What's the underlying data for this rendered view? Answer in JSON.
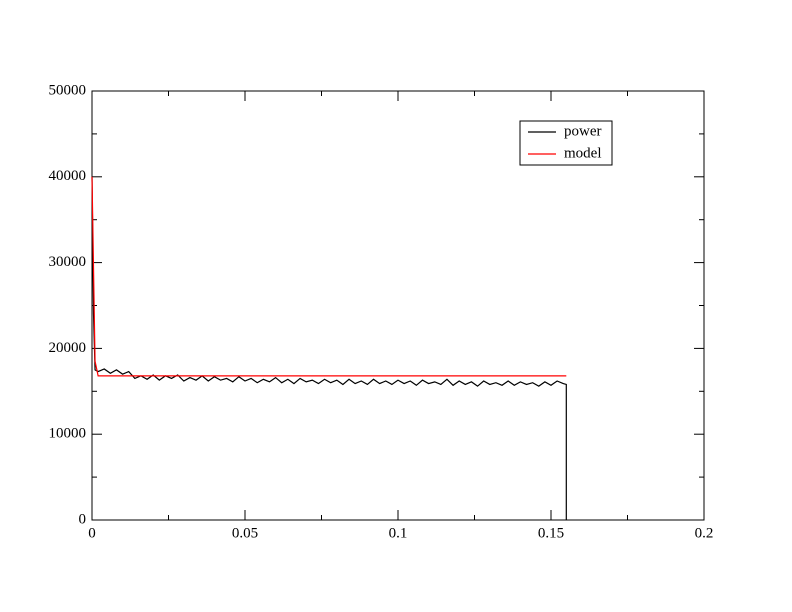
{
  "chart_data": {
    "type": "line",
    "series": [
      {
        "name": "power",
        "color": "#000000",
        "x": [
          0,
          0.0005,
          0.001,
          0.002,
          0.004,
          0.006,
          0.008,
          0.01,
          0.012,
          0.014,
          0.016,
          0.018,
          0.02,
          0.022,
          0.024,
          0.026,
          0.028,
          0.03,
          0.032,
          0.034,
          0.036,
          0.038,
          0.04,
          0.042,
          0.044,
          0.046,
          0.048,
          0.05,
          0.052,
          0.054,
          0.056,
          0.058,
          0.06,
          0.062,
          0.064,
          0.066,
          0.068,
          0.07,
          0.072,
          0.074,
          0.076,
          0.078,
          0.08,
          0.082,
          0.084,
          0.086,
          0.088,
          0.09,
          0.092,
          0.094,
          0.096,
          0.098,
          0.1,
          0.102,
          0.104,
          0.106,
          0.108,
          0.11,
          0.112,
          0.114,
          0.116,
          0.118,
          0.12,
          0.122,
          0.124,
          0.126,
          0.128,
          0.13,
          0.132,
          0.134,
          0.136,
          0.138,
          0.14,
          0.142,
          0.144,
          0.146,
          0.148,
          0.15,
          0.152,
          0.154,
          0.155,
          0.155
        ],
        "values": [
          40000,
          24000,
          17500,
          17300,
          17600,
          17100,
          17500,
          17000,
          17300,
          16500,
          16800,
          16400,
          16900,
          16300,
          16800,
          16500,
          16900,
          16200,
          16600,
          16300,
          16800,
          16200,
          16700,
          16300,
          16500,
          16100,
          16700,
          16200,
          16500,
          16000,
          16400,
          16100,
          16600,
          16000,
          16400,
          15900,
          16500,
          16100,
          16300,
          15900,
          16400,
          16000,
          16300,
          15800,
          16400,
          15900,
          16200,
          15800,
          16400,
          15900,
          16200,
          15800,
          16300,
          15900,
          16200,
          15700,
          16300,
          15900,
          16100,
          15800,
          16400,
          15700,
          16200,
          15800,
          16100,
          15600,
          16200,
          15800,
          16000,
          15700,
          16200,
          15700,
          16100,
          15800,
          16000,
          15600,
          16100,
          15700,
          16200,
          15900,
          15800,
          0
        ]
      },
      {
        "name": "model",
        "color": "#ff0000",
        "x": [
          0,
          0.001,
          0.002,
          0.155
        ],
        "values": [
          40000,
          18500,
          16800,
          16800
        ]
      }
    ],
    "xlim": [
      0,
      0.2
    ],
    "xticks": [
      0,
      0.05,
      0.1,
      0.15,
      0.2
    ],
    "xminorticks": [
      0.025,
      0.075,
      0.125,
      0.175
    ],
    "ylim": [
      0,
      50000
    ],
    "yticks": [
      0,
      10000,
      20000,
      30000,
      40000,
      50000
    ],
    "yminorticks": [
      5000,
      15000,
      25000,
      35000,
      45000
    ],
    "legend": "upper right"
  }
}
